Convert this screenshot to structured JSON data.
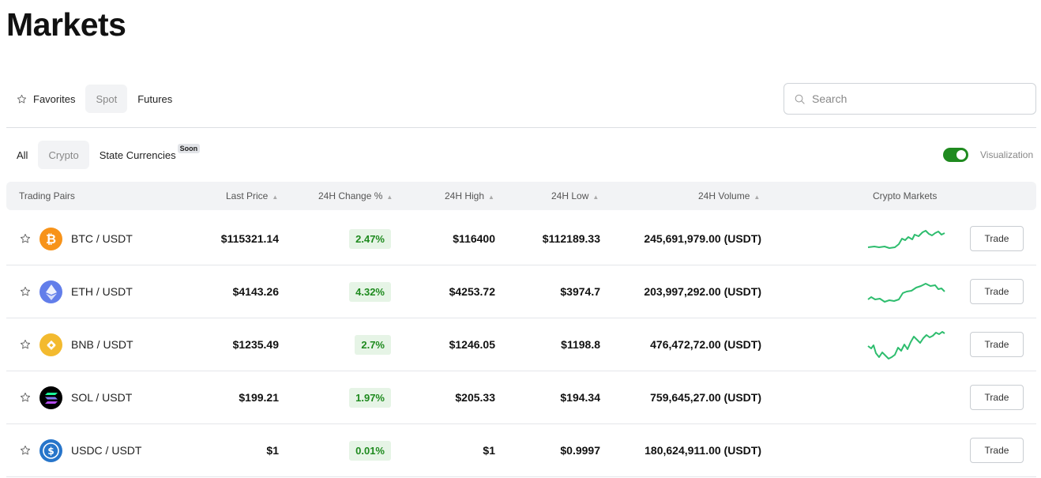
{
  "page_title": "Markets",
  "market_tabs": [
    {
      "label": "Favorites",
      "icon": "star-icon"
    },
    {
      "label": "Spot",
      "active": true
    },
    {
      "label": "Futures"
    }
  ],
  "search": {
    "placeholder": "Search",
    "value": ""
  },
  "category_tabs": [
    {
      "label": "All"
    },
    {
      "label": "Crypto",
      "active": true
    },
    {
      "label": "State Currencies",
      "badge": "Soon"
    }
  ],
  "visualization": {
    "label": "Visualization",
    "enabled": true,
    "color": "#1f8a1f"
  },
  "columns": {
    "pair": "Trading Pairs",
    "price": "Last Price",
    "change": "24H Change %",
    "high": "24H High",
    "low": "24H Low",
    "volume": "24H Volume",
    "markets": "Crypto Markets"
  },
  "trade_label": "Trade",
  "rows": [
    {
      "pair": "BTC / USDT",
      "icon": "bitcoin-icon",
      "color": "#f7931a",
      "price": "$115321.14",
      "change": "2.47%",
      "high": "$116400",
      "low": "$112189.33",
      "volume": "245,691,979.00 (USDT)"
    },
    {
      "pair": "ETH / USDT",
      "icon": "ethereum-icon",
      "color": "#627eea",
      "price": "$4143.26",
      "change": "4.32%",
      "high": "$4253.72",
      "low": "$3974.7",
      "volume": "203,997,292.00 (USDT)"
    },
    {
      "pair": "BNB / USDT",
      "icon": "bnb-icon",
      "color": "#f3ba2f",
      "price": "$1235.49",
      "change": "2.7%",
      "high": "$1246.05",
      "low": "$1198.8",
      "volume": "476,472,72.00 (USDT)"
    },
    {
      "pair": "SOL / USDT",
      "icon": "solana-icon",
      "color": "#000000",
      "price": "$199.21",
      "change": "1.97%",
      "high": "$205.33",
      "low": "$194.34",
      "volume": "759,645,27.00 (USDT)"
    },
    {
      "pair": "USDC / USDT",
      "icon": "usdc-icon",
      "color": "#2775ca",
      "price": "$1",
      "change": "0.01%",
      "high": "$1",
      "low": "$0.9997",
      "volume": "180,624,911.00 (USDT)"
    }
  ],
  "sparkline_color": "#2ebd6e"
}
